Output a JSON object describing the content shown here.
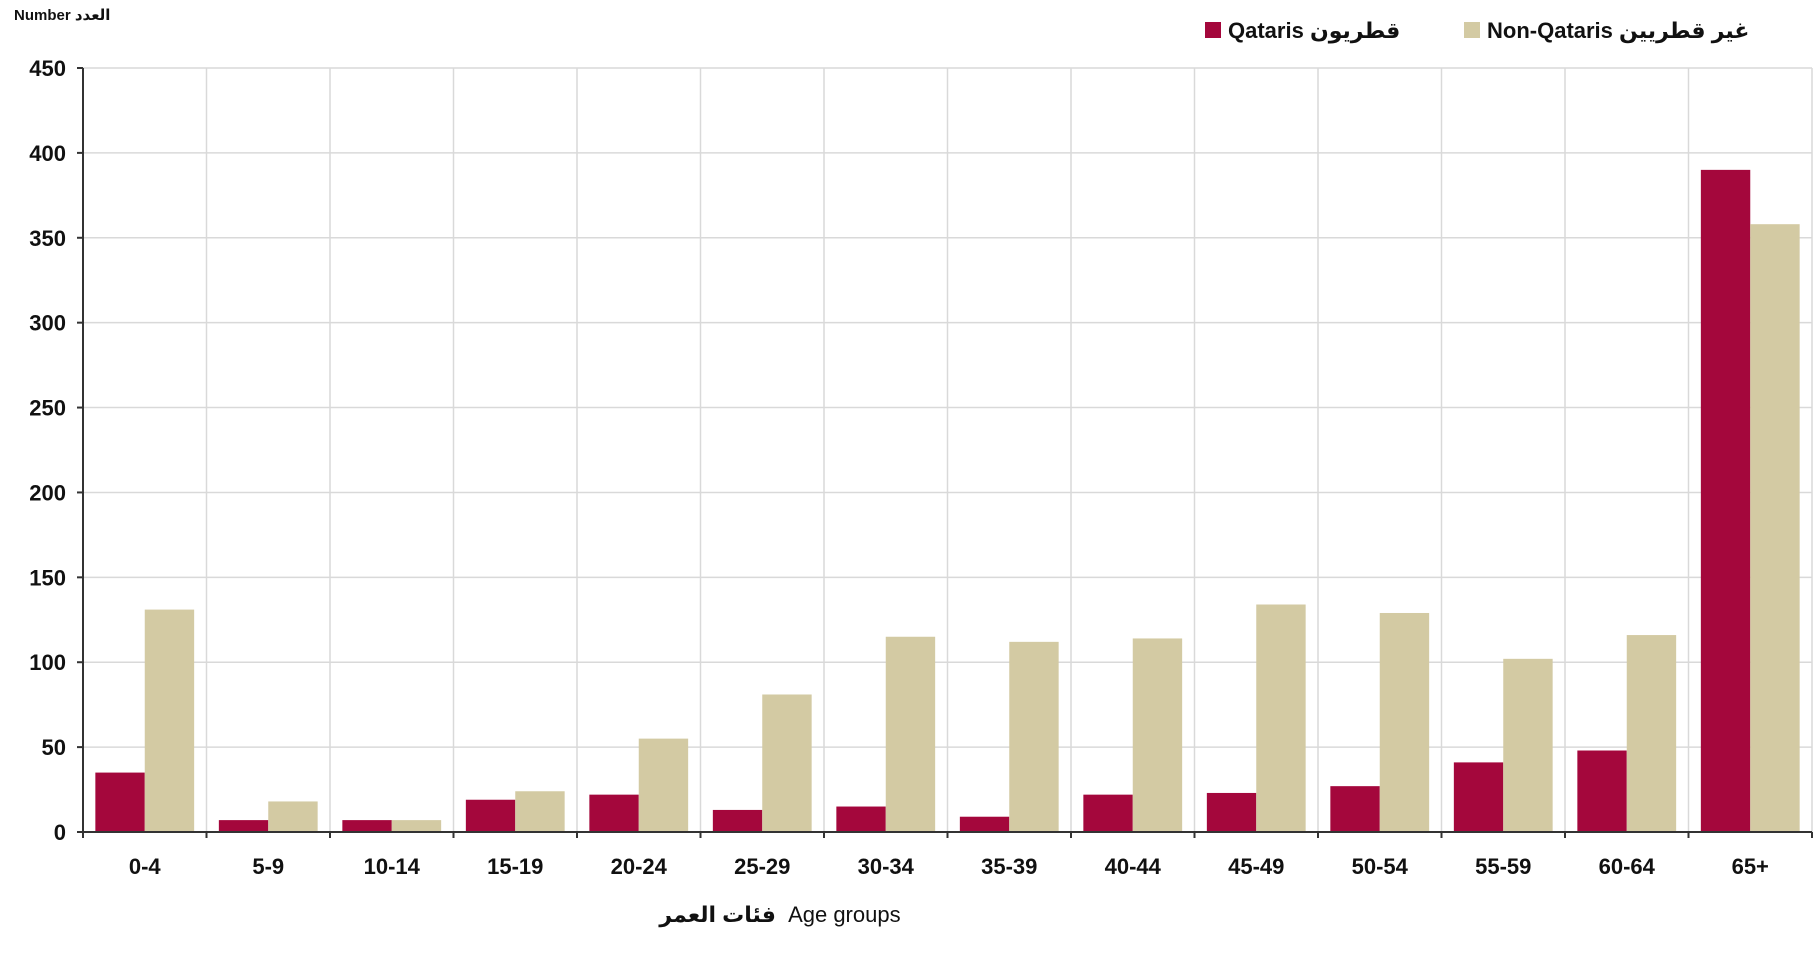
{
  "chart_data": {
    "type": "bar",
    "ylabel": "Number العدد",
    "xlabel_ar": "فئات العمر",
    "xlabel_en": "Age groups",
    "ylim": [
      0,
      450
    ],
    "yticks": [
      0,
      50,
      100,
      150,
      200,
      250,
      300,
      350,
      400,
      450
    ],
    "grid": true,
    "legend_position": "top-right",
    "categories": [
      "0-4",
      "5-9",
      "10-14",
      "15-19",
      "20-24",
      "25-29",
      "30-34",
      "35-39",
      "40-44",
      "45-49",
      "50-54",
      "55-59",
      "60-64",
      "65+"
    ],
    "series": [
      {
        "name": "Qataris قطريون",
        "color": "#a4073c",
        "values": [
          35,
          7,
          7,
          19,
          22,
          13,
          15,
          9,
          22,
          23,
          27,
          41,
          48,
          390
        ]
      },
      {
        "name": "Non-Qataris غير قطريين",
        "color": "#d3caa3",
        "values": [
          131,
          18,
          7,
          24,
          55,
          81,
          115,
          112,
          114,
          134,
          129,
          102,
          116,
          358
        ]
      }
    ]
  }
}
